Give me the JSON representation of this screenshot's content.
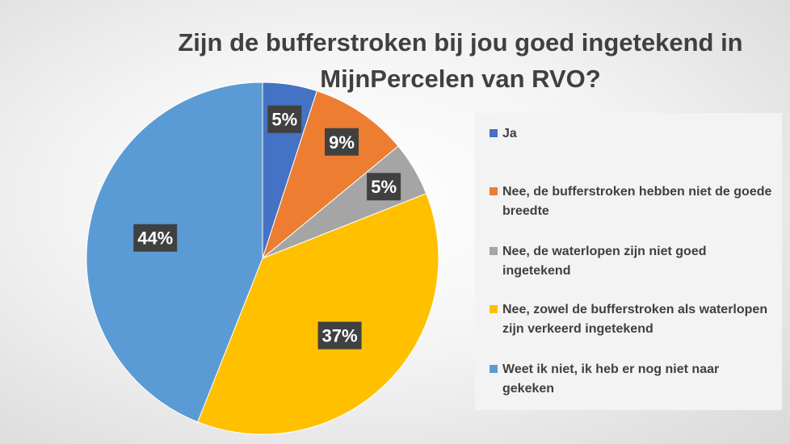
{
  "chart_data": {
    "type": "pie",
    "title": "Zijn de bufferstroken bij jou goed ingetekend in MijnPercelen van RVO?",
    "slices": [
      {
        "label": "Ja",
        "value": 5,
        "display": "5%",
        "color": "#4472C4"
      },
      {
        "label": "Nee, de bufferstroken hebben niet de goede breedte",
        "value": 9,
        "display": "9%",
        "color": "#ED7D31"
      },
      {
        "label": "Nee, de waterlopen zijn niet goed ingetekend",
        "value": 5,
        "display": "5%",
        "color": "#A5A5A5"
      },
      {
        "label": "Nee, zowel de bufferstroken als waterlopen zijn verkeerd ingetekend",
        "value": 37,
        "display": "37%",
        "color": "#FFC000"
      },
      {
        "label": "Weet ik niet, ik heb er nog niet naar gekeken",
        "value": 44,
        "display": "44%",
        "color": "#5B9BD5"
      }
    ],
    "legend_position": "right"
  }
}
